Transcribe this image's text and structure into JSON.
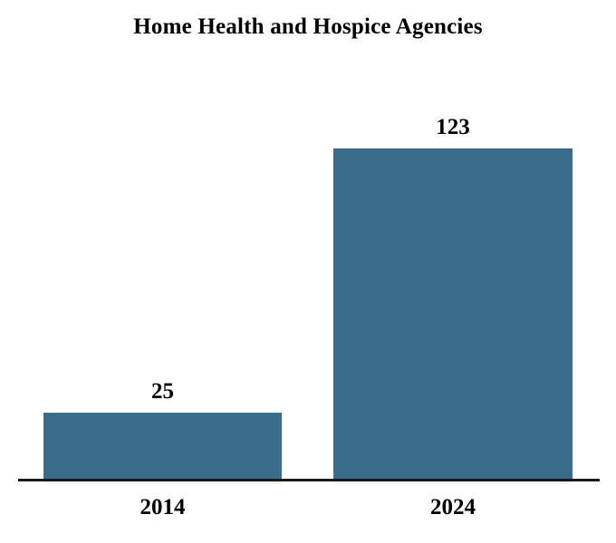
{
  "chart_data": {
    "type": "bar",
    "title": "Home Health and Hospice Agencies",
    "categories": [
      "2014",
      "2024"
    ],
    "values": [
      25,
      123
    ],
    "data_labels": [
      "25",
      "123"
    ],
    "xlabel": "",
    "ylabel": "",
    "ylim": [
      0,
      140
    ],
    "grid": false,
    "legend": "none",
    "bar_color": "#3A6D8C",
    "axis_line_color": "#1A1A1A",
    "background_color": "#FFFFFF",
    "text_color": "#000000"
  }
}
